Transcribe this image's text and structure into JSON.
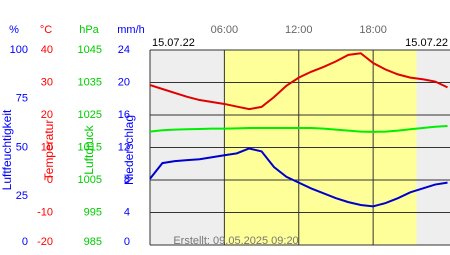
{
  "chart_data": {
    "type": "line",
    "date_left": "15.07.22",
    "date_right": "15.07.22",
    "created": "Erstellt: 09.05.2025 09:20",
    "xlim": [
      0,
      24.2
    ],
    "xticks": [
      {
        "value": 6,
        "label": "06:00"
      },
      {
        "value": 12,
        "label": "12:00"
      },
      {
        "value": 18,
        "label": "18:00"
      }
    ],
    "daylight": [
      6,
      21.5
    ],
    "grid": true,
    "axes": [
      {
        "unit": "%",
        "name": "Luftfeuchtigkeit",
        "color": "#0000ff",
        "lim": [
          0,
          100
        ],
        "ticks": [
          100,
          75,
          50,
          25,
          0
        ]
      },
      {
        "unit": "°C",
        "name": "Temperatur",
        "color": "#ff0000",
        "lim": [
          -20,
          40
        ],
        "ticks": [
          40,
          30,
          20,
          10,
          0,
          -10,
          -20
        ]
      },
      {
        "unit": "hPa",
        "name": "Luftdruck",
        "color": "#00cc00",
        "lim": [
          985,
          1045
        ],
        "ticks": [
          1045,
          1035,
          1025,
          1015,
          1005,
          995,
          985
        ]
      },
      {
        "unit": "mm/h",
        "name": "Niederschlag",
        "color": "#0000ff",
        "lim": [
          0,
          24
        ],
        "ticks": [
          24,
          20,
          16,
          12,
          8,
          4,
          0
        ]
      }
    ],
    "x": [
      0,
      1,
      2,
      3,
      4,
      5,
      6,
      7,
      8,
      9,
      10,
      11,
      12,
      13,
      14,
      15,
      16,
      17,
      18,
      19,
      20,
      21,
      22,
      23,
      24
    ],
    "series": [
      {
        "name": "Temperatur",
        "axis": 1,
        "color": "#e00000",
        "values": [
          29.2,
          28,
          26.8,
          25.6,
          24.6,
          24,
          23.4,
          22.6,
          21.8,
          22.5,
          25.5,
          29,
          31.5,
          33.3,
          34.8,
          36.5,
          38.5,
          39,
          36,
          34,
          32.5,
          31.5,
          31,
          30.3,
          28.5
        ]
      },
      {
        "name": "Luftdruck",
        "axis": 2,
        "color": "#00ee00",
        "values": [
          1019.9,
          1020.3,
          1020.5,
          1020.6,
          1020.7,
          1020.8,
          1020.8,
          1020.9,
          1021,
          1021,
          1021,
          1021,
          1021,
          1021,
          1020.8,
          1020.5,
          1020.2,
          1019.9,
          1019.8,
          1019.9,
          1020.2,
          1020.6,
          1021,
          1021.4,
          1021.6
        ]
      },
      {
        "name": "Luftfeuchtigkeit",
        "axis": 0,
        "color": "#0000cc",
        "values": [
          34,
          42,
          43,
          43.5,
          44,
          45,
          46,
          47,
          49.5,
          48,
          40,
          35,
          32,
          29,
          26.5,
          24,
          22,
          20.5,
          19.8,
          21.5,
          24,
          27,
          29,
          31,
          32
        ]
      }
    ]
  }
}
